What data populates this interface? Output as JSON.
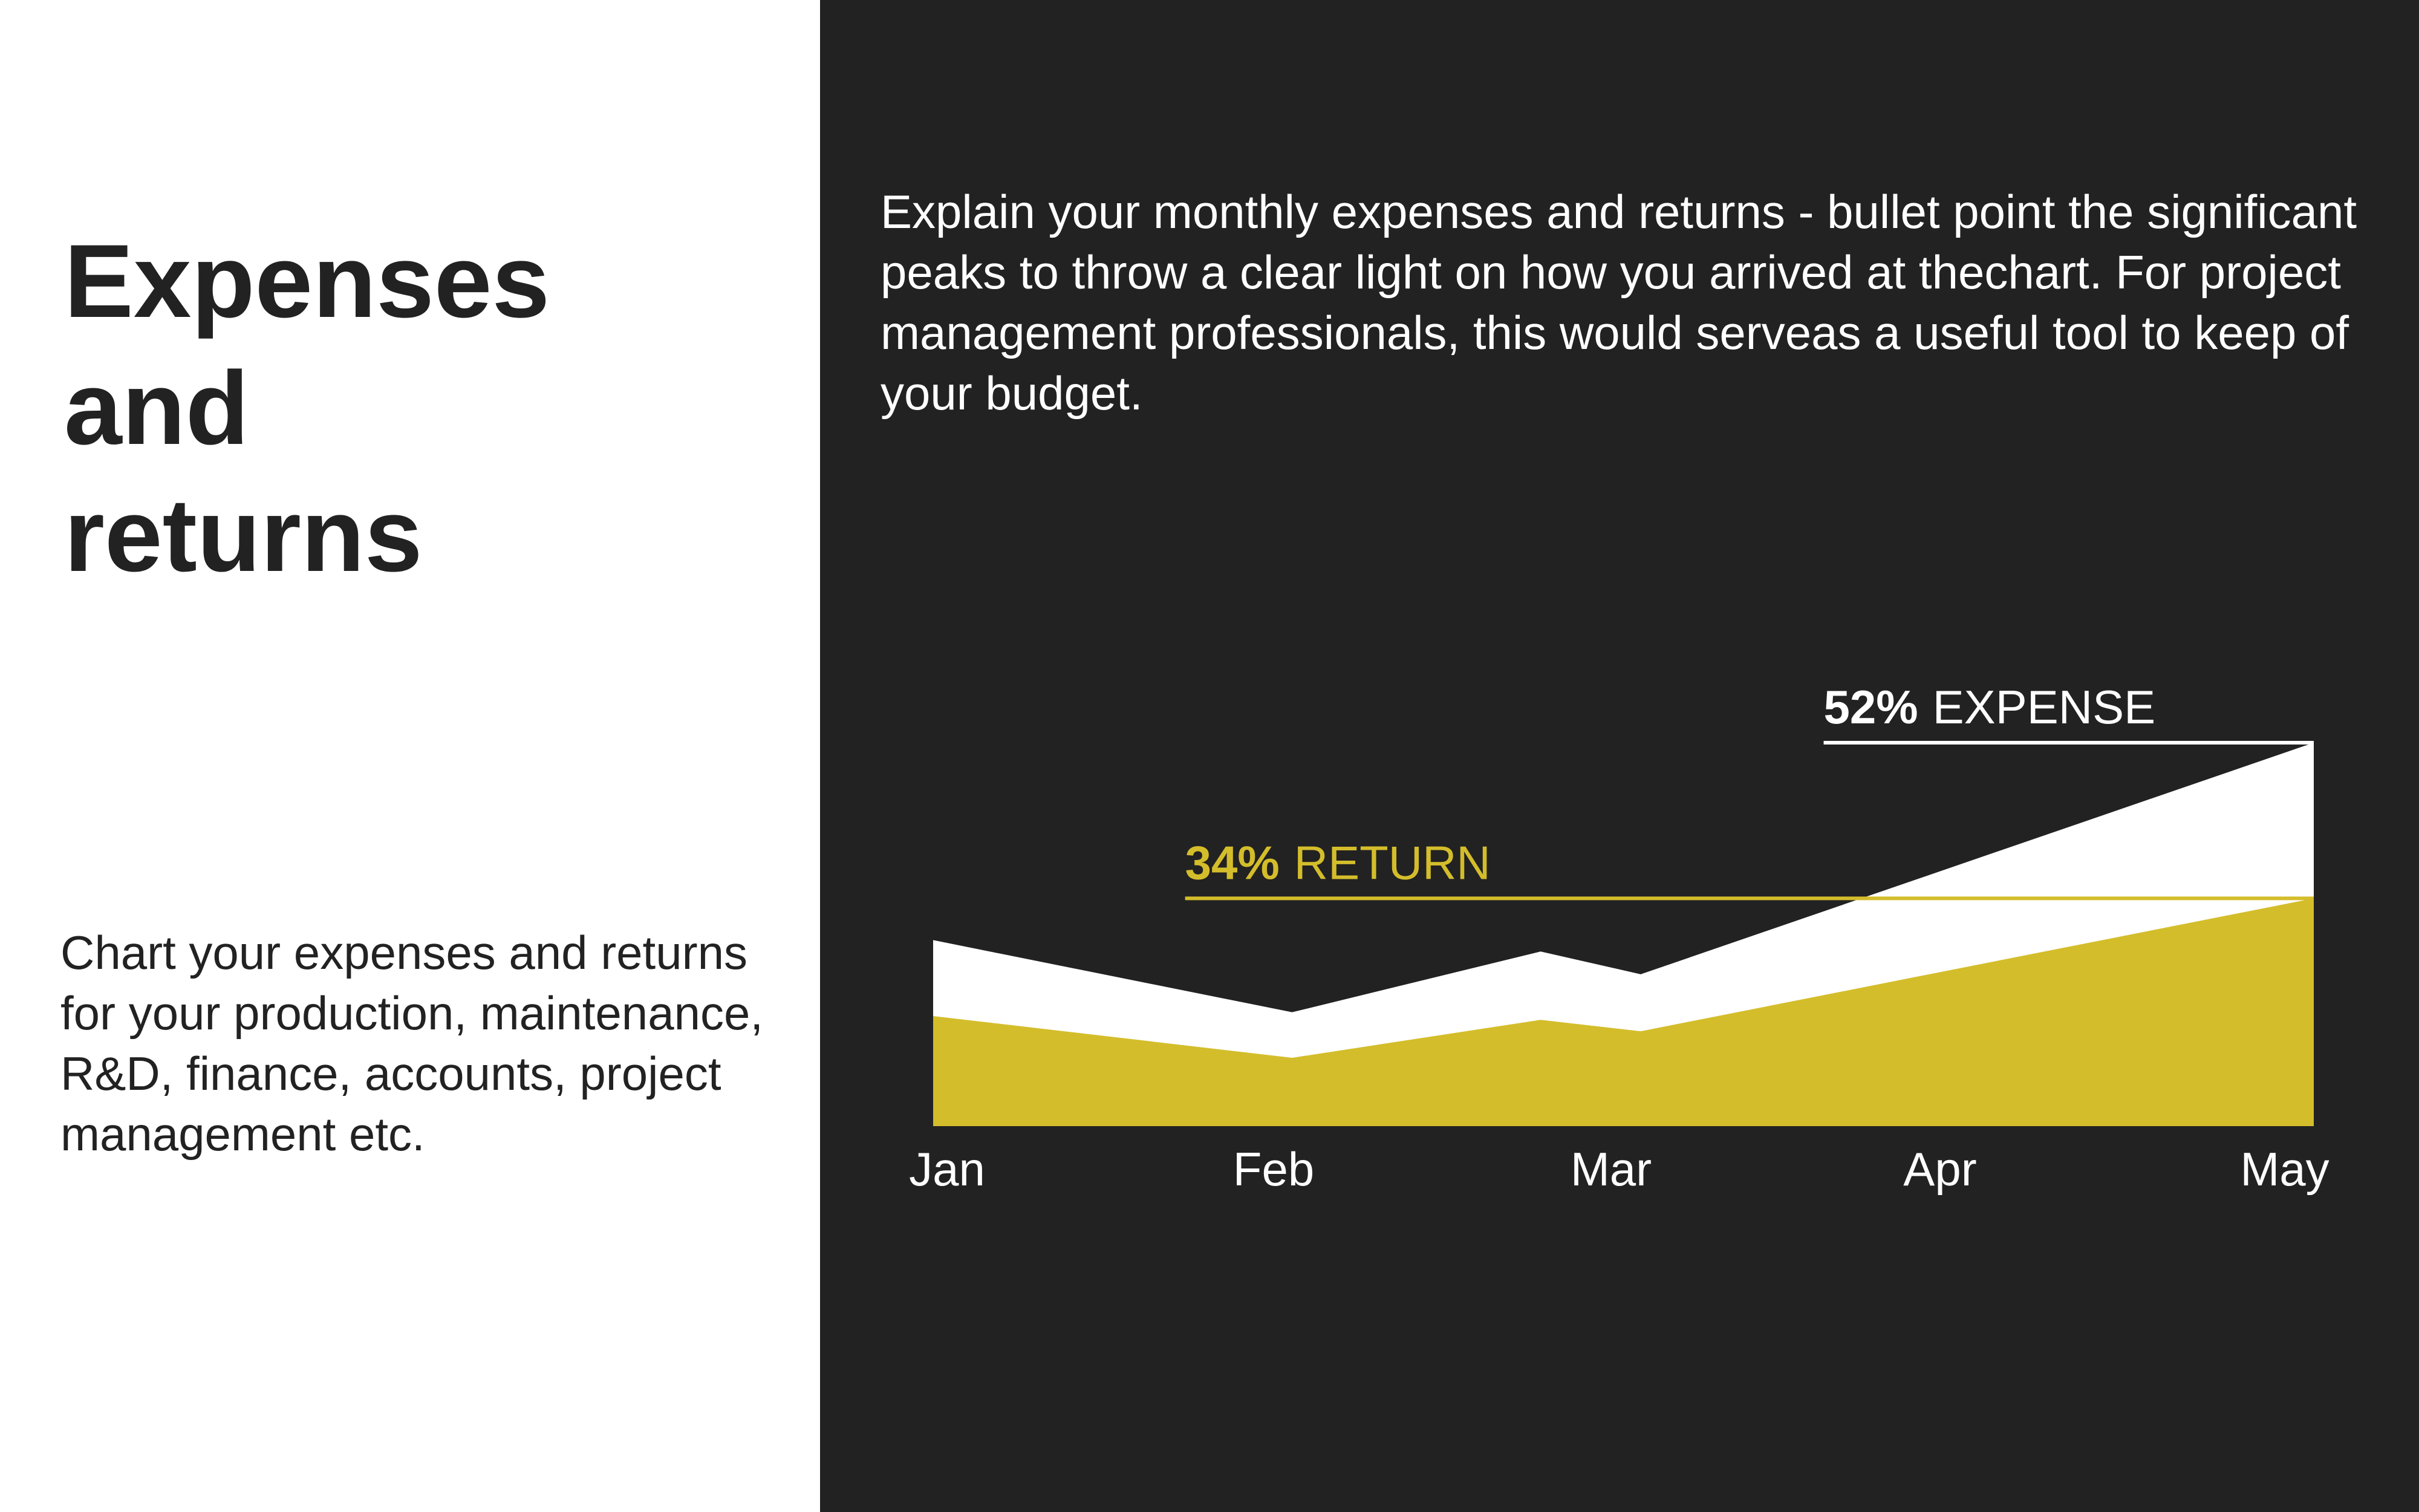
{
  "slide": {
    "title": "Expenses\nand\nreturns",
    "subtitle": "Chart your expenses and returns for your production, maintenance, R&D, finance, accounts, project management etc.",
    "description": "Explain your monthly expenses and returns - bullet point the significant peaks to throw a clear light on how you arrived at thechart. For project management professionals, this would serveas a useful tool to keep of your budget."
  },
  "colors": {
    "background_dark": "#222222",
    "background_light": "#ffffff",
    "expense": "#ffffff",
    "return": "#d4bd2b",
    "text_dark": "#222222",
    "text_light": "#ffffff"
  },
  "chart_data": {
    "type": "area",
    "categories": [
      "Jan",
      "Feb",
      "Mar",
      "Apr",
      "May"
    ],
    "x_positions": [
      0,
      1,
      2,
      2.35,
      4
    ],
    "series": [
      {
        "name": "EXPENSE",
        "values": [
          49,
          30,
          46,
          40,
          101
        ],
        "x_positions": [
          0,
          1.04,
          1.76,
          2.05,
          4
        ],
        "color": "#ffffff"
      },
      {
        "name": "RETURN",
        "values": [
          29,
          18,
          28,
          25,
          60
        ],
        "x_positions": [
          0,
          1.04,
          1.76,
          2.05,
          4
        ],
        "color": "#d4bd2b"
      }
    ],
    "ylim": [
      0,
      101
    ],
    "grid": false,
    "annotations": [
      {
        "series": "EXPENSE",
        "value_label": "52%",
        "text": "EXPENSE",
        "color": "#ffffff",
        "y": 101,
        "x_start": 2.58
      },
      {
        "series": "RETURN",
        "value_label": "34%",
        "text": "RETURN",
        "color": "#d4bd2b",
        "y": 60,
        "x_start": 0.73
      }
    ]
  }
}
